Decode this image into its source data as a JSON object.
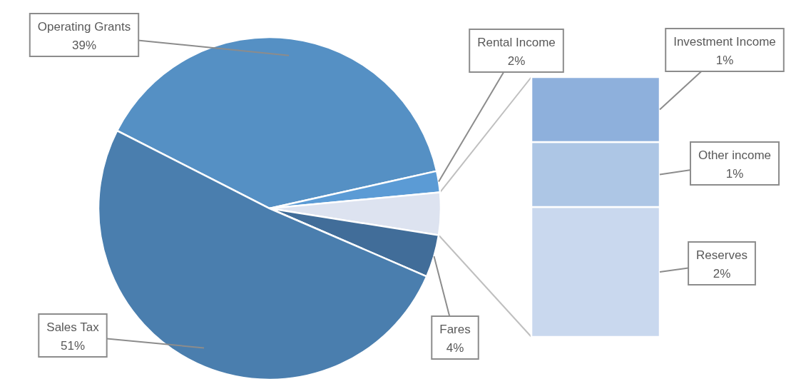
{
  "chart_data": [
    {
      "type": "pie",
      "categories": [
        "Operating Grants",
        "Rental Income",
        null,
        "Fares",
        "Sales Tax"
      ],
      "values": [
        39,
        2,
        4,
        4,
        51
      ],
      "colors": [
        "#5590c4",
        "#5b9bd5",
        "#dde3f0",
        "#416d99",
        "#4a7eae"
      ],
      "value_labels": [
        "39%",
        "2%",
        null,
        "4%",
        "51%"
      ]
    },
    {
      "type": "bar",
      "stacked": true,
      "categories": [
        null
      ],
      "series": [
        {
          "name": "Reserves",
          "color": "#c9d8ee",
          "values": [
            2
          ],
          "value_labels": [
            "2%"
          ]
        },
        {
          "name": "Other income",
          "color": "#adc6e5",
          "values": [
            1
          ],
          "value_labels": [
            "1%"
          ]
        },
        {
          "name": "Investment Income",
          "color": "#8eb0dc",
          "values": [
            1
          ],
          "value_labels": [
            "1%"
          ]
        }
      ]
    }
  ]
}
